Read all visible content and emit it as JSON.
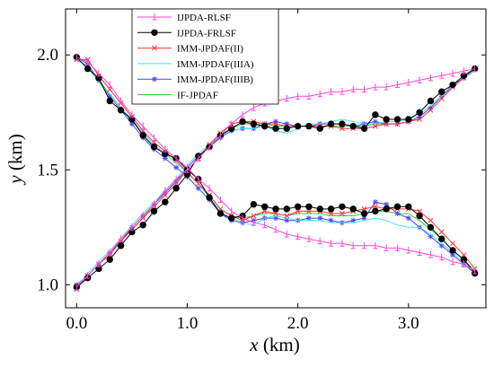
{
  "chart_data": {
    "type": "line",
    "title": "",
    "xlabel_var": "x",
    "xlabel_unit": " (km)",
    "ylabel_var": "y",
    "ylabel_unit": " (km)",
    "xlim": [
      -0.1,
      3.7
    ],
    "ylim": [
      0.9,
      2.2
    ],
    "xticks": [
      0.0,
      1.0,
      2.0,
      3.0
    ],
    "xtick_labels": [
      "0.0",
      "1.0",
      "2.0",
      "3.0"
    ],
    "yticks": [
      1.0,
      1.5,
      2.0
    ],
    "ytick_labels": [
      "1.0",
      "1.5",
      "2.0"
    ],
    "grid": false,
    "legend_position": "top-center",
    "series": [
      {
        "name": "IJPDA-RLSF",
        "color": "#ff44dd",
        "marker": "tick-up",
        "targets": [
          {
            "x": [
              0,
              0.1,
              0.2,
              0.3,
              0.4,
              0.5,
              0.6,
              0.7,
              0.8,
              0.9,
              1.0,
              1.1,
              1.2,
              1.3,
              1.4,
              1.5,
              1.6,
              1.7,
              1.8,
              1.9,
              2.0,
              2.1,
              2.2,
              2.3,
              2.4,
              2.5,
              2.6,
              2.7,
              2.8,
              2.9,
              3.0,
              3.1,
              3.2,
              3.3,
              3.4,
              3.5,
              3.6
            ],
            "y": [
              1.99,
              1.97,
              1.92,
              1.87,
              1.8,
              1.74,
              1.69,
              1.64,
              1.59,
              1.55,
              1.51,
              1.46,
              1.42,
              1.37,
              1.32,
              1.29,
              1.27,
              1.26,
              1.24,
              1.22,
              1.21,
              1.2,
              1.19,
              1.18,
              1.18,
              1.17,
              1.17,
              1.17,
              1.16,
              1.16,
              1.15,
              1.14,
              1.13,
              1.12,
              1.1,
              1.09,
              1.06
            ]
          },
          {
            "x": [
              0,
              0.1,
              0.2,
              0.3,
              0.4,
              0.5,
              0.6,
              0.7,
              0.8,
              0.9,
              1.0,
              1.1,
              1.2,
              1.3,
              1.4,
              1.5,
              1.6,
              1.7,
              1.8,
              1.9,
              2.0,
              2.1,
              2.2,
              2.3,
              2.4,
              2.5,
              2.6,
              2.7,
              2.8,
              2.9,
              3.0,
              3.1,
              3.2,
              3.3,
              3.4,
              3.5,
              3.6
            ],
            "y": [
              0.99,
              1.04,
              1.09,
              1.14,
              1.2,
              1.25,
              1.3,
              1.35,
              1.41,
              1.46,
              1.5,
              1.55,
              1.6,
              1.65,
              1.7,
              1.74,
              1.77,
              1.79,
              1.8,
              1.81,
              1.82,
              1.82,
              1.83,
              1.84,
              1.84,
              1.85,
              1.85,
              1.86,
              1.86,
              1.87,
              1.88,
              1.89,
              1.9,
              1.91,
              1.92,
              1.93,
              1.94
            ]
          }
        ]
      },
      {
        "name": "IJPDA-FRLSF",
        "color": "#000000",
        "marker": "filled-circle",
        "targets": [
          {
            "x": [
              0,
              0.1,
              0.2,
              0.3,
              0.4,
              0.5,
              0.6,
              0.7,
              0.8,
              0.9,
              1.0,
              1.1,
              1.2,
              1.3,
              1.4,
              1.5,
              1.6,
              1.7,
              1.8,
              1.9,
              2.0,
              2.1,
              2.2,
              2.3,
              2.4,
              2.5,
              2.6,
              2.7,
              2.8,
              2.9,
              3.0,
              3.1,
              3.2,
              3.3,
              3.4,
              3.5,
              3.6
            ],
            "y": [
              1.99,
              1.94,
              1.9,
              1.8,
              1.76,
              1.72,
              1.65,
              1.6,
              1.57,
              1.55,
              1.5,
              1.46,
              1.38,
              1.31,
              1.29,
              1.3,
              1.35,
              1.34,
              1.33,
              1.33,
              1.34,
              1.34,
              1.33,
              1.33,
              1.34,
              1.33,
              1.31,
              1.32,
              1.33,
              1.34,
              1.34,
              1.3,
              1.25,
              1.2,
              1.15,
              1.11,
              1.05
            ]
          },
          {
            "x": [
              0,
              0.1,
              0.2,
              0.3,
              0.4,
              0.5,
              0.6,
              0.7,
              0.8,
              0.9,
              1.0,
              1.1,
              1.2,
              1.3,
              1.4,
              1.5,
              1.6,
              1.7,
              1.8,
              1.9,
              2.0,
              2.1,
              2.2,
              2.3,
              2.4,
              2.5,
              2.6,
              2.7,
              2.8,
              2.9,
              3.0,
              3.1,
              3.2,
              3.3,
              3.4,
              3.5,
              3.6
            ],
            "y": [
              0.99,
              1.03,
              1.07,
              1.11,
              1.17,
              1.23,
              1.26,
              1.32,
              1.36,
              1.42,
              1.48,
              1.56,
              1.6,
              1.65,
              1.68,
              1.71,
              1.7,
              1.69,
              1.68,
              1.68,
              1.69,
              1.69,
              1.68,
              1.7,
              1.7,
              1.69,
              1.68,
              1.74,
              1.72,
              1.72,
              1.72,
              1.75,
              1.8,
              1.84,
              1.87,
              1.91,
              1.94
            ]
          }
        ]
      },
      {
        "name": "IMM-JPDAF(II)",
        "color": "#ff3333",
        "marker": "x",
        "targets": [
          {
            "x": [
              0,
              0.1,
              0.2,
              0.3,
              0.4,
              0.5,
              0.6,
              0.7,
              0.8,
              0.9,
              1.0,
              1.1,
              1.2,
              1.3,
              1.4,
              1.5,
              1.6,
              1.7,
              1.8,
              1.9,
              2.0,
              2.1,
              2.2,
              2.3,
              2.4,
              2.5,
              2.6,
              2.7,
              2.8,
              2.9,
              3.0,
              3.1,
              3.2,
              3.3,
              3.4,
              3.5,
              3.6
            ],
            "y": [
              1.98,
              1.98,
              1.91,
              1.85,
              1.79,
              1.73,
              1.67,
              1.62,
              1.58,
              1.54,
              1.49,
              1.44,
              1.39,
              1.33,
              1.3,
              1.28,
              1.3,
              1.32,
              1.31,
              1.3,
              1.32,
              1.32,
              1.32,
              1.31,
              1.31,
              1.32,
              1.33,
              1.34,
              1.33,
              1.33,
              1.33,
              1.32,
              1.28,
              1.23,
              1.18,
              1.13,
              1.07
            ]
          },
          {
            "x": [
              0,
              0.1,
              0.2,
              0.3,
              0.4,
              0.5,
              0.6,
              0.7,
              0.8,
              0.9,
              1.0,
              1.1,
              1.2,
              1.3,
              1.4,
              1.5,
              1.6,
              1.7,
              1.8,
              1.9,
              2.0,
              2.1,
              2.2,
              2.3,
              2.4,
              2.5,
              2.6,
              2.7,
              2.8,
              2.9,
              3.0,
              3.1,
              3.2,
              3.3,
              3.4,
              3.5,
              3.6
            ],
            "y": [
              0.98,
              1.04,
              1.09,
              1.13,
              1.19,
              1.24,
              1.29,
              1.34,
              1.39,
              1.44,
              1.5,
              1.55,
              1.61,
              1.66,
              1.7,
              1.71,
              1.71,
              1.7,
              1.7,
              1.69,
              1.69,
              1.69,
              1.69,
              1.69,
              1.68,
              1.68,
              1.68,
              1.69,
              1.7,
              1.7,
              1.71,
              1.72,
              1.76,
              1.81,
              1.86,
              1.9,
              1.94
            ]
          }
        ]
      },
      {
        "name": "IMM-JPDAF(IIIA)",
        "color": "#44e6e6",
        "marker": "none",
        "targets": [
          {
            "x": [
              0,
              0.1,
              0.2,
              0.3,
              0.4,
              0.5,
              0.6,
              0.7,
              0.8,
              0.9,
              1.0,
              1.1,
              1.2,
              1.3,
              1.4,
              1.5,
              1.6,
              1.7,
              1.8,
              1.9,
              2.0,
              2.1,
              2.2,
              2.3,
              2.4,
              2.5,
              2.6,
              2.7,
              2.8,
              2.9,
              3.0,
              3.1,
              3.2,
              3.3,
              3.4,
              3.5,
              3.6
            ],
            "y": [
              1.98,
              1.95,
              1.88,
              1.83,
              1.77,
              1.72,
              1.66,
              1.61,
              1.57,
              1.53,
              1.49,
              1.44,
              1.38,
              1.32,
              1.29,
              1.27,
              1.26,
              1.29,
              1.3,
              1.29,
              1.28,
              1.28,
              1.28,
              1.27,
              1.27,
              1.27,
              1.28,
              1.29,
              1.28,
              1.26,
              1.25,
              1.25,
              1.22,
              1.18,
              1.14,
              1.1,
              1.06
            ]
          },
          {
            "x": [
              0,
              0.1,
              0.2,
              0.3,
              0.4,
              0.5,
              0.6,
              0.7,
              0.8,
              0.9,
              1.0,
              1.1,
              1.2,
              1.3,
              1.4,
              1.5,
              1.6,
              1.7,
              1.8,
              1.9,
              2.0,
              2.1,
              2.2,
              2.3,
              2.4,
              2.5,
              2.6,
              2.7,
              2.8,
              2.9,
              3.0,
              3.1,
              3.2,
              3.3,
              3.4,
              3.5,
              3.6
            ],
            "y": [
              0.99,
              1.05,
              1.1,
              1.15,
              1.2,
              1.26,
              1.31,
              1.36,
              1.41,
              1.46,
              1.52,
              1.57,
              1.61,
              1.65,
              1.67,
              1.68,
              1.68,
              1.69,
              1.67,
              1.66,
              1.68,
              1.7,
              1.7,
              1.71,
              1.72,
              1.71,
              1.7,
              1.7,
              1.71,
              1.71,
              1.72,
              1.74,
              1.78,
              1.82,
              1.86,
              1.9,
              1.93
            ]
          }
        ]
      },
      {
        "name": "IMM-JPDAF(IIIB)",
        "color": "#4444ff",
        "marker": "star",
        "targets": [
          {
            "x": [
              0,
              0.1,
              0.2,
              0.3,
              0.4,
              0.5,
              0.6,
              0.7,
              0.8,
              0.9,
              1.0,
              1.1,
              1.2,
              1.3,
              1.4,
              1.5,
              1.6,
              1.7,
              1.8,
              1.9,
              2.0,
              2.1,
              2.2,
              2.3,
              2.4,
              2.5,
              2.6,
              2.7,
              2.8,
              2.9,
              3.0,
              3.1,
              3.2,
              3.3,
              3.4,
              3.5,
              3.6
            ],
            "y": [
              1.99,
              1.96,
              1.89,
              1.82,
              1.76,
              1.7,
              1.64,
              1.59,
              1.55,
              1.51,
              1.47,
              1.42,
              1.37,
              1.31,
              1.28,
              1.27,
              1.28,
              1.29,
              1.29,
              1.28,
              1.28,
              1.29,
              1.29,
              1.28,
              1.27,
              1.28,
              1.29,
              1.36,
              1.35,
              1.31,
              1.29,
              1.25,
              1.21,
              1.17,
              1.13,
              1.09,
              1.05
            ]
          },
          {
            "x": [
              0,
              0.1,
              0.2,
              0.3,
              0.4,
              0.5,
              0.6,
              0.7,
              0.8,
              0.9,
              1.0,
              1.1,
              1.2,
              1.3,
              1.4,
              1.5,
              1.6,
              1.7,
              1.8,
              1.9,
              2.0,
              2.1,
              2.2,
              2.3,
              2.4,
              2.5,
              2.6,
              2.7,
              2.8,
              2.9,
              3.0,
              3.1,
              3.2,
              3.3,
              3.4,
              3.5,
              3.6
            ],
            "y": [
              1.0,
              1.04,
              1.09,
              1.14,
              1.19,
              1.25,
              1.3,
              1.35,
              1.4,
              1.45,
              1.51,
              1.56,
              1.6,
              1.64,
              1.67,
              1.68,
              1.68,
              1.7,
              1.71,
              1.7,
              1.69,
              1.69,
              1.7,
              1.7,
              1.7,
              1.69,
              1.7,
              1.71,
              1.7,
              1.7,
              1.71,
              1.73,
              1.77,
              1.82,
              1.87,
              1.9,
              1.94
            ]
          }
        ]
      },
      {
        "name": "IF-JPDAF",
        "color": "#33cc33",
        "marker": "none",
        "targets": [
          {
            "x": [
              0,
              0.1,
              0.2,
              0.3,
              0.4,
              0.5,
              0.6,
              0.7,
              0.8,
              0.9,
              1.0,
              1.1,
              1.2,
              1.3,
              1.4,
              1.5,
              1.6,
              1.7,
              1.8,
              1.9,
              2.0,
              2.1,
              2.2,
              2.3,
              2.4,
              2.5,
              2.6,
              2.7,
              2.8,
              2.9,
              3.0,
              3.1,
              3.2,
              3.3,
              3.4,
              3.5,
              3.6
            ],
            "y": [
              1.98,
              1.95,
              1.89,
              1.83,
              1.77,
              1.71,
              1.66,
              1.61,
              1.57,
              1.53,
              1.49,
              1.44,
              1.39,
              1.33,
              1.3,
              1.29,
              1.3,
              1.31,
              1.31,
              1.3,
              1.31,
              1.31,
              1.31,
              1.3,
              1.3,
              1.3,
              1.31,
              1.32,
              1.32,
              1.31,
              1.31,
              1.28,
              1.24,
              1.2,
              1.15,
              1.11,
              1.06
            ]
          },
          {
            "x": [
              0,
              0.1,
              0.2,
              0.3,
              0.4,
              0.5,
              0.6,
              0.7,
              0.8,
              0.9,
              1.0,
              1.1,
              1.2,
              1.3,
              1.4,
              1.5,
              1.6,
              1.7,
              1.8,
              1.9,
              2.0,
              2.1,
              2.2,
              2.3,
              2.4,
              2.5,
              2.6,
              2.7,
              2.8,
              2.9,
              3.0,
              3.1,
              3.2,
              3.3,
              3.4,
              3.5,
              3.6
            ],
            "y": [
              0.99,
              1.04,
              1.09,
              1.14,
              1.19,
              1.24,
              1.29,
              1.35,
              1.4,
              1.45,
              1.5,
              1.55,
              1.6,
              1.65,
              1.68,
              1.7,
              1.7,
              1.7,
              1.69,
              1.69,
              1.69,
              1.69,
              1.69,
              1.69,
              1.69,
              1.69,
              1.69,
              1.7,
              1.7,
              1.7,
              1.71,
              1.73,
              1.77,
              1.82,
              1.86,
              1.9,
              1.94
            ]
          }
        ]
      }
    ]
  }
}
